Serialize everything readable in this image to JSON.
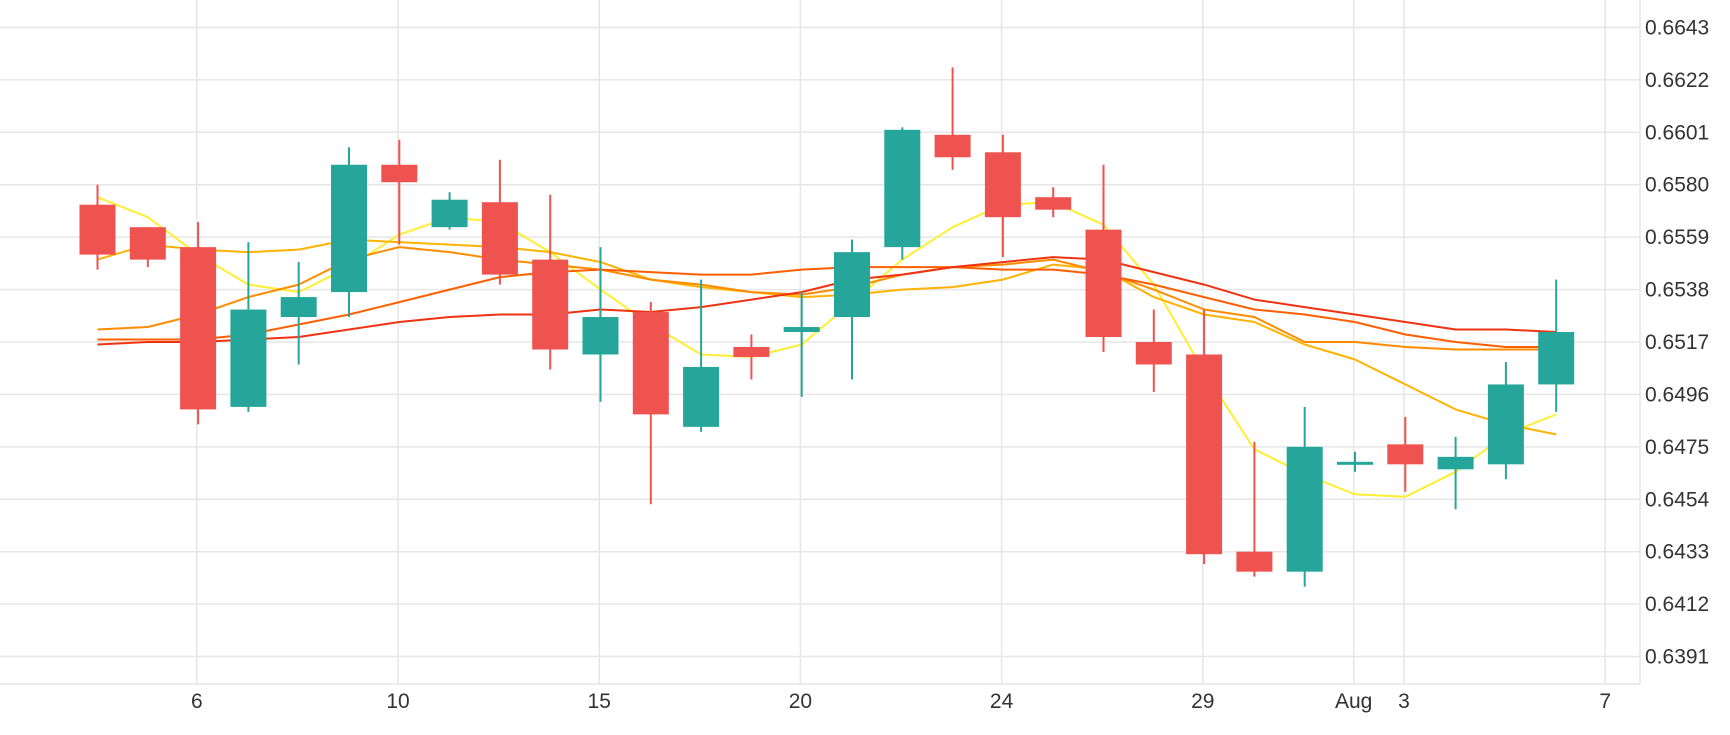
{
  "chart_data": {
    "type": "candlestick",
    "y_ticks": [
      "0.6643",
      "0.6622",
      "0.6601",
      "0.6580",
      "0.6559",
      "0.6538",
      "0.6517",
      "0.6496",
      "0.6475",
      "0.6454",
      "0.6433",
      "0.6412",
      "0.6391"
    ],
    "x_ticks": [
      {
        "label": "6",
        "index": 1
      },
      {
        "label": "10",
        "index": 5
      },
      {
        "label": "15",
        "index": 9
      },
      {
        "label": "20",
        "index": 13
      },
      {
        "label": "24",
        "index": 17
      },
      {
        "label": "29",
        "index": 21
      },
      {
        "label": "Aug",
        "index": 24
      },
      {
        "label": "3",
        "index": 25
      },
      {
        "label": "7",
        "index": 29
      }
    ],
    "ylim": [
      0.638,
      0.6654
    ],
    "grid": true,
    "colors": {
      "up": "#26a69a",
      "down": "#ef5350",
      "grid": "#e6e6e6",
      "axis_text": "#333333"
    },
    "candles": [
      {
        "open": 0.6572,
        "high": 0.658,
        "low": 0.6546,
        "close": 0.6552
      },
      {
        "open": 0.6563,
        "high": 0.6563,
        "low": 0.6547,
        "close": 0.655
      },
      {
        "open": 0.6555,
        "high": 0.6565,
        "low": 0.6484,
        "close": 0.649
      },
      {
        "open": 0.6491,
        "high": 0.6557,
        "low": 0.6489,
        "close": 0.653
      },
      {
        "open": 0.6527,
        "high": 0.6549,
        "low": 0.6508,
        "close": 0.6535
      },
      {
        "open": 0.6537,
        "high": 0.6595,
        "low": 0.6527,
        "close": 0.6588
      },
      {
        "open": 0.6588,
        "high": 0.6598,
        "low": 0.6556,
        "close": 0.6581
      },
      {
        "open": 0.6563,
        "high": 0.6577,
        "low": 0.6562,
        "close": 0.6574
      },
      {
        "open": 0.6573,
        "high": 0.659,
        "low": 0.654,
        "close": 0.6544
      },
      {
        "open": 0.655,
        "high": 0.6576,
        "low": 0.6506,
        "close": 0.6514
      },
      {
        "open": 0.6512,
        "high": 0.6555,
        "low": 0.6493,
        "close": 0.6527
      },
      {
        "open": 0.6529,
        "high": 0.6533,
        "low": 0.6452,
        "close": 0.6488
      },
      {
        "open": 0.6483,
        "high": 0.6542,
        "low": 0.6481,
        "close": 0.6507
      },
      {
        "open": 0.6515,
        "high": 0.652,
        "low": 0.6502,
        "close": 0.6511
      },
      {
        "open": 0.6521,
        "high": 0.6537,
        "low": 0.6495,
        "close": 0.6523
      },
      {
        "open": 0.6527,
        "high": 0.6558,
        "low": 0.6502,
        "close": 0.6553
      },
      {
        "open": 0.6555,
        "high": 0.6603,
        "low": 0.655,
        "close": 0.6602
      },
      {
        "open": 0.66,
        "high": 0.6627,
        "low": 0.6586,
        "close": 0.6591
      },
      {
        "open": 0.6593,
        "high": 0.66,
        "low": 0.6551,
        "close": 0.6567
      },
      {
        "open": 0.6575,
        "high": 0.6579,
        "low": 0.6567,
        "close": 0.657
      },
      {
        "open": 0.6562,
        "high": 0.6588,
        "low": 0.6513,
        "close": 0.6519
      },
      {
        "open": 0.6517,
        "high": 0.653,
        "low": 0.6497,
        "close": 0.6508
      },
      {
        "open": 0.6512,
        "high": 0.653,
        "low": 0.6428,
        "close": 0.6432
      },
      {
        "open": 0.6433,
        "high": 0.6477,
        "low": 0.6423,
        "close": 0.6425
      },
      {
        "open": 0.6425,
        "high": 0.6491,
        "low": 0.6419,
        "close": 0.6475
      },
      {
        "open": 0.6469,
        "high": 0.6473,
        "low": 0.6465,
        "close": 0.6469
      },
      {
        "open": 0.6476,
        "high": 0.6487,
        "low": 0.6457,
        "close": 0.6468
      },
      {
        "open": 0.6466,
        "high": 0.6479,
        "low": 0.645,
        "close": 0.6471
      },
      {
        "open": 0.6468,
        "high": 0.6509,
        "low": 0.6462,
        "close": 0.65
      },
      {
        "open": 0.65,
        "high": 0.6542,
        "low": 0.6489,
        "close": 0.6521
      }
    ],
    "series": [
      {
        "color": "#ffee33",
        "values": [
          0.6575,
          0.6567,
          0.6552,
          0.654,
          0.6537,
          0.6547,
          0.656,
          0.6567,
          0.6565,
          0.6553,
          0.6538,
          0.6524,
          0.6512,
          0.6511,
          0.6516,
          0.6533,
          0.655,
          0.6563,
          0.6572,
          0.6573,
          0.6564,
          0.654,
          0.6505,
          0.6474,
          0.6464,
          0.6456,
          0.6455,
          0.6465,
          0.648,
          0.6488
        ]
      },
      {
        "color": "#ffb300",
        "values": [
          0.655,
          0.6556,
          0.6554,
          0.6553,
          0.6554,
          0.6558,
          0.6557,
          0.6556,
          0.6555,
          0.6553,
          0.6549,
          0.6542,
          0.6539,
          0.6537,
          0.6535,
          0.6536,
          0.6538,
          0.6539,
          0.6542,
          0.6548,
          0.6546,
          0.6535,
          0.6528,
          0.6525,
          0.6516,
          0.651,
          0.65,
          0.649,
          0.6484,
          0.648
        ]
      },
      {
        "color": "#ff8c00",
        "values": [
          0.6522,
          0.6523,
          0.6528,
          0.6535,
          0.654,
          0.655,
          0.6555,
          0.6553,
          0.655,
          0.6548,
          0.6546,
          0.6542,
          0.654,
          0.6537,
          0.6536,
          0.6539,
          0.6544,
          0.6547,
          0.6548,
          0.655,
          0.6545,
          0.6538,
          0.653,
          0.6527,
          0.6517,
          0.6517,
          0.6515,
          0.6514,
          0.6514,
          0.6514
        ]
      },
      {
        "color": "#ff5f00",
        "values": [
          0.6518,
          0.6518,
          0.6518,
          0.652,
          0.6524,
          0.6528,
          0.6533,
          0.6538,
          0.6543,
          0.6545,
          0.6546,
          0.6545,
          0.6544,
          0.6544,
          0.6546,
          0.6547,
          0.6547,
          0.6547,
          0.6546,
          0.6546,
          0.6544,
          0.654,
          0.6535,
          0.653,
          0.6528,
          0.6525,
          0.652,
          0.6517,
          0.6515,
          0.6515
        ]
      },
      {
        "color": "#ee3311",
        "values": [
          0.6516,
          0.6517,
          0.6517,
          0.6518,
          0.6519,
          0.6522,
          0.6525,
          0.6527,
          0.6528,
          0.6528,
          0.653,
          0.6529,
          0.6531,
          0.6534,
          0.6537,
          0.6542,
          0.6544,
          0.6547,
          0.6549,
          0.6551,
          0.655,
          0.6545,
          0.654,
          0.6534,
          0.6531,
          0.6528,
          0.6525,
          0.6522,
          0.6522,
          0.6521
        ]
      }
    ]
  }
}
